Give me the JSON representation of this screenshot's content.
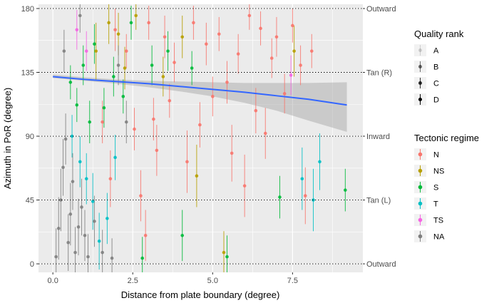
{
  "chart_data": {
    "type": "scatter",
    "xlabel": "Distance from plate boundary (degree)",
    "ylabel": "Azimuth in PoR (degree)",
    "xlim": [
      -0.45,
      9.7
    ],
    "ylim": [
      -6,
      183
    ],
    "x_ticks": [
      {
        "value": 0,
        "label": "0.0"
      },
      {
        "value": 2.5,
        "label": "2.5"
      },
      {
        "value": 5,
        "label": "5.0"
      },
      {
        "value": 7.5,
        "label": "7.5"
      }
    ],
    "y_ticks": [
      {
        "value": 0,
        "label": "0"
      },
      {
        "value": 45,
        "label": "45"
      },
      {
        "value": 90,
        "label": "90"
      },
      {
        "value": 135,
        "label": "135"
      },
      {
        "value": 180,
        "label": "180"
      }
    ],
    "secondary_y_ticks": [
      {
        "value": 0,
        "label": "Outward"
      },
      {
        "value": 45,
        "label": "Tan (L)"
      },
      {
        "value": 90,
        "label": "Inward"
      },
      {
        "value": 135,
        "label": "Tan (R)"
      },
      {
        "value": 180,
        "label": "Outward"
      }
    ],
    "grid": true,
    "dotted_reference_lines": [
      0,
      45,
      90,
      135,
      180
    ],
    "legend_position": "right",
    "legends": [
      {
        "title": "Quality rank",
        "kind": "quality",
        "items": [
          {
            "label": "A",
            "alpha": 0.15
          },
          {
            "label": "B",
            "alpha": 0.55
          },
          {
            "label": "C",
            "alpha": 0.8
          },
          {
            "label": "D",
            "alpha": 1.0
          }
        ]
      },
      {
        "title": "Tectonic regime",
        "kind": "regime",
        "items": [
          {
            "label": "N",
            "color": "#F8766D"
          },
          {
            "label": "NS",
            "color": "#B79F00"
          },
          {
            "label": "S",
            "color": "#00BA38"
          },
          {
            "label": "T",
            "color": "#00BFC4"
          },
          {
            "label": "TS",
            "color": "#F564E3"
          },
          {
            "label": "NA",
            "color": "#7F7F7F"
          }
        ]
      }
    ],
    "trend_line": {
      "color": "#3366FF",
      "x": [
        0.0,
        1.0,
        2.0,
        3.0,
        4.0,
        5.0,
        6.0,
        7.0,
        8.0,
        9.2
      ],
      "y": [
        132,
        130,
        128.5,
        127,
        125,
        123,
        121,
        118.5,
        116,
        112
      ],
      "ci_lower": [
        131,
        129,
        127,
        124.5,
        121.5,
        118,
        113.5,
        108,
        101,
        93
      ],
      "ci_upper": [
        133.5,
        131.5,
        130,
        129,
        128.5,
        128,
        127.5,
        127.5,
        127.5,
        128
      ]
    },
    "series": [
      {
        "name": "N",
        "color": "#F8766D",
        "points": [
          {
            "x": 1.55,
            "y": 100,
            "err": 15
          },
          {
            "x": 1.8,
            "y": 60,
            "err": 20
          },
          {
            "x": 1.95,
            "y": 165,
            "err": 15
          },
          {
            "x": 2.3,
            "y": 150,
            "err": 12
          },
          {
            "x": 2.55,
            "y": 95,
            "err": 15
          },
          {
            "x": 2.75,
            "y": 48,
            "err": 18
          },
          {
            "x": 2.9,
            "y": 20,
            "err": 18
          },
          {
            "x": 3.0,
            "y": 170,
            "err": 12
          },
          {
            "x": 3.15,
            "y": 102,
            "err": 15
          },
          {
            "x": 3.25,
            "y": 80,
            "err": 18
          },
          {
            "x": 3.5,
            "y": 160,
            "err": 15
          },
          {
            "x": 3.65,
            "y": 115,
            "err": 12
          },
          {
            "x": 3.8,
            "y": 142,
            "err": 14
          },
          {
            "x": 4.2,
            "y": 72,
            "err": 22
          },
          {
            "x": 4.4,
            "y": 170,
            "err": 12
          },
          {
            "x": 4.6,
            "y": 98,
            "err": 16
          },
          {
            "x": 4.8,
            "y": 155,
            "err": 15
          },
          {
            "x": 5.0,
            "y": 118,
            "err": 14
          },
          {
            "x": 5.2,
            "y": 162,
            "err": 12
          },
          {
            "x": 5.45,
            "y": 128,
            "err": 15
          },
          {
            "x": 5.6,
            "y": 78,
            "err": 20
          },
          {
            "x": 5.8,
            "y": 148,
            "err": 14
          },
          {
            "x": 6.0,
            "y": 55,
            "err": 22
          },
          {
            "x": 6.15,
            "y": 175,
            "err": 10
          },
          {
            "x": 6.35,
            "y": 108,
            "err": 16
          },
          {
            "x": 6.5,
            "y": 166,
            "err": 12
          },
          {
            "x": 6.65,
            "y": 92,
            "err": 18
          },
          {
            "x": 6.85,
            "y": 145,
            "err": 14
          },
          {
            "x": 7.0,
            "y": 160,
            "err": 14
          },
          {
            "x": 7.25,
            "y": 120,
            "err": 14
          },
          {
            "x": 7.5,
            "y": 168,
            "err": 12
          },
          {
            "x": 7.75,
            "y": 140,
            "err": 14
          },
          {
            "x": 7.9,
            "y": 48,
            "err": 20
          },
          {
            "x": 8.1,
            "y": 150,
            "err": 12
          }
        ]
      },
      {
        "name": "NS",
        "color": "#B79F00",
        "points": [
          {
            "x": 1.35,
            "y": 150,
            "err": 20
          },
          {
            "x": 1.75,
            "y": 170,
            "err": 15
          },
          {
            "x": 2.05,
            "y": 162,
            "err": 15
          },
          {
            "x": 2.25,
            "y": 138,
            "err": 15
          },
          {
            "x": 2.6,
            "y": 175,
            "err": 10
          },
          {
            "x": 3.45,
            "y": 132,
            "err": 14
          },
          {
            "x": 4.05,
            "y": 160,
            "err": 15
          },
          {
            "x": 4.5,
            "y": 62,
            "err": 22
          },
          {
            "x": 5.35,
            "y": 8,
            "err": 15
          },
          {
            "x": 7.55,
            "y": 150,
            "err": 18
          }
        ]
      },
      {
        "name": "S",
        "color": "#00BA38",
        "points": [
          {
            "x": 0.55,
            "y": 128,
            "err": 12
          },
          {
            "x": 0.75,
            "y": 112,
            "err": 12
          },
          {
            "x": 0.95,
            "y": 140,
            "err": 14
          },
          {
            "x": 1.15,
            "y": 100,
            "err": 15
          },
          {
            "x": 1.3,
            "y": 155,
            "err": 14
          },
          {
            "x": 1.6,
            "y": 110,
            "err": 14
          },
          {
            "x": 1.9,
            "y": 132,
            "err": 14
          },
          {
            "x": 2.2,
            "y": 118,
            "err": 12
          },
          {
            "x": 2.45,
            "y": 170,
            "err": 12
          },
          {
            "x": 2.8,
            "y": 4,
            "err": 15
          },
          {
            "x": 3.1,
            "y": 140,
            "err": 14
          },
          {
            "x": 3.6,
            "y": 150,
            "err": 14
          },
          {
            "x": 4.05,
            "y": 20,
            "err": 18
          },
          {
            "x": 4.35,
            "y": 138,
            "err": 12
          },
          {
            "x": 5.45,
            "y": 5,
            "err": 15
          },
          {
            "x": 7.1,
            "y": 47,
            "err": 15
          },
          {
            "x": 9.15,
            "y": 52,
            "err": 15
          }
        ]
      },
      {
        "name": "T",
        "color": "#00BFC4",
        "points": [
          {
            "x": 0.6,
            "y": 90,
            "err": 15
          },
          {
            "x": 0.85,
            "y": 72,
            "err": 18
          },
          {
            "x": 1.05,
            "y": 60,
            "err": 18
          },
          {
            "x": 1.25,
            "y": 44,
            "err": 20
          },
          {
            "x": 1.45,
            "y": 16,
            "err": 20
          },
          {
            "x": 1.7,
            "y": 32,
            "err": 18
          },
          {
            "x": 1.95,
            "y": 75,
            "err": 16
          },
          {
            "x": 7.8,
            "y": 60,
            "err": 22
          },
          {
            "x": 8.15,
            "y": 45,
            "err": 22
          },
          {
            "x": 8.35,
            "y": 72,
            "err": 20
          }
        ]
      },
      {
        "name": "TS",
        "color": "#F564E3",
        "points": [
          {
            "x": 0.75,
            "y": 165,
            "err": 14
          },
          {
            "x": 1.05,
            "y": 150,
            "err": 14
          },
          {
            "x": 7.45,
            "y": 133,
            "err": 14
          }
        ]
      },
      {
        "name": "NA",
        "color": "#7F7F7F",
        "points": [
          {
            "x": 0.1,
            "y": 5,
            "err": 20
          },
          {
            "x": 0.18,
            "y": 25,
            "err": 22
          },
          {
            "x": 0.25,
            "y": 45,
            "err": 22
          },
          {
            "x": 0.32,
            "y": 68,
            "err": 20
          },
          {
            "x": 0.4,
            "y": 88,
            "err": 18
          },
          {
            "x": 0.48,
            "y": 15,
            "err": 20
          },
          {
            "x": 0.55,
            "y": 35,
            "err": 22
          },
          {
            "x": 0.62,
            "y": 58,
            "err": 20
          },
          {
            "x": 0.7,
            "y": 8,
            "err": 18
          },
          {
            "x": 0.8,
            "y": 26,
            "err": 20
          },
          {
            "x": 0.9,
            "y": 40,
            "err": 20
          },
          {
            "x": 1.0,
            "y": 20,
            "err": 18
          },
          {
            "x": 1.1,
            "y": 5,
            "err": 16
          },
          {
            "x": 1.3,
            "y": 30,
            "err": 18
          },
          {
            "x": 1.55,
            "y": 8,
            "err": 16
          },
          {
            "x": 1.85,
            "y": 4,
            "err": 14
          },
          {
            "x": 2.05,
            "y": 140,
            "err": 14
          },
          {
            "x": 0.35,
            "y": 150,
            "err": 15
          },
          {
            "x": 0.85,
            "y": 175,
            "err": 12
          },
          {
            "x": 2.3,
            "y": 100,
            "err": 15
          }
        ]
      }
    ]
  }
}
